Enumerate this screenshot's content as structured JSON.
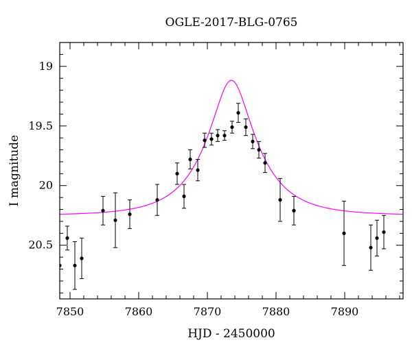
{
  "chart_data": {
    "type": "scatter",
    "title": "OGLE-2017-BLG-0765",
    "xlabel": "HJD - 2450000",
    "ylabel": "I magnitude",
    "xlim": [
      7848.5,
      7898.5
    ],
    "ylim": [
      20.95,
      18.8
    ],
    "y_inverted": true,
    "x_ticks": [
      7850,
      7860,
      7870,
      7880,
      7890
    ],
    "x_tick_labels": [
      "7850",
      "7860",
      "7870",
      "7880",
      "7890"
    ],
    "y_ticks": [
      19,
      19.5,
      20,
      20.5
    ],
    "y_tick_labels": [
      "19",
      "19.5",
      "20",
      "20.5"
    ],
    "x_minor_step": 2,
    "y_minor_step": 0.1,
    "grid": false,
    "series": [
      {
        "kind": "points",
        "color": "#000000",
        "points": [
          {
            "x": 7848.5,
            "y": 20.67,
            "err": 0.0
          },
          {
            "x": 7849.6,
            "y": 20.44,
            "err": 0.1
          },
          {
            "x": 7850.7,
            "y": 20.67,
            "err": 0.2
          },
          {
            "x": 7851.7,
            "y": 20.61,
            "err": 0.17
          },
          {
            "x": 7854.8,
            "y": 20.21,
            "err": 0.12
          },
          {
            "x": 7856.6,
            "y": 20.29,
            "err": 0.23
          },
          {
            "x": 7858.7,
            "y": 20.24,
            "err": 0.12
          },
          {
            "x": 7862.7,
            "y": 20.12,
            "err": 0.13
          },
          {
            "x": 7865.6,
            "y": 19.9,
            "err": 0.09
          },
          {
            "x": 7866.6,
            "y": 20.09,
            "err": 0.1
          },
          {
            "x": 7867.5,
            "y": 19.78,
            "err": 0.08
          },
          {
            "x": 7868.6,
            "y": 19.87,
            "err": 0.09
          },
          {
            "x": 7869.6,
            "y": 19.62,
            "err": 0.06
          },
          {
            "x": 7870.6,
            "y": 19.61,
            "err": 0.05
          },
          {
            "x": 7871.5,
            "y": 19.58,
            "err": 0.05
          },
          {
            "x": 7872.5,
            "y": 19.58,
            "err": 0.04
          },
          {
            "x": 7873.6,
            "y": 19.51,
            "err": 0.05
          },
          {
            "x": 7874.5,
            "y": 19.39,
            "err": 0.08
          },
          {
            "x": 7875.6,
            "y": 19.51,
            "err": 0.07
          },
          {
            "x": 7876.6,
            "y": 19.63,
            "err": 0.06
          },
          {
            "x": 7877.5,
            "y": 19.7,
            "err": 0.07
          },
          {
            "x": 7878.4,
            "y": 19.81,
            "err": 0.08
          },
          {
            "x": 7880.6,
            "y": 20.12,
            "err": 0.18
          },
          {
            "x": 7882.6,
            "y": 20.21,
            "err": 0.12
          },
          {
            "x": 7889.9,
            "y": 20.4,
            "err": 0.27
          },
          {
            "x": 7893.8,
            "y": 20.52,
            "err": 0.19
          },
          {
            "x": 7894.7,
            "y": 20.44,
            "err": 0.15
          },
          {
            "x": 7895.7,
            "y": 20.39,
            "err": 0.14
          }
        ]
      },
      {
        "kind": "model-line",
        "color": "#ff00ff",
        "t0": 7873.5,
        "tE": 7.0,
        "u0": 0.37,
        "base_mag": 20.25,
        "x_range": [
          7848.5,
          7898.5
        ]
      }
    ]
  }
}
